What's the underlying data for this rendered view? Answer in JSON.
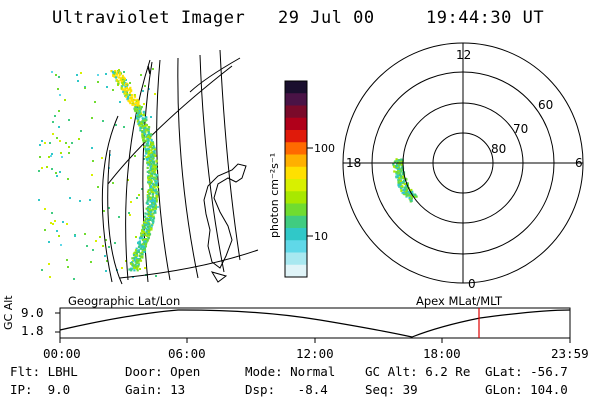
{
  "header": {
    "title": "Ultraviolet Imager",
    "date": "29 Jul 00",
    "time": "19:44:30 UT"
  },
  "colorbar": {
    "label": "photon cm⁻²s⁻¹",
    "ticks": [
      "100",
      "10"
    ],
    "colors": [
      "#1a0f2e",
      "#4a1346",
      "#7a0a2a",
      "#b0001a",
      "#e01a0a",
      "#ff6a00",
      "#ffb000",
      "#ffe000",
      "#d8f000",
      "#a8e800",
      "#70dc30",
      "#40cc80",
      "#30c8c8",
      "#60d8e8",
      "#a8e8f0",
      "#e0f4f8"
    ]
  },
  "polar": {
    "mlt_labels": {
      "top": "12",
      "left": "18",
      "right": "6",
      "bottom": "0"
    },
    "lat_labels": [
      "60",
      "70",
      "80"
    ]
  },
  "timeline": {
    "left_title": "Geographic Lat/Lon",
    "right_title": "Apex MLat/MLT",
    "yaxis_label": "GC Alt",
    "ytick_top": "9.0",
    "ytick_bottom": "1.8",
    "xticks": [
      "00:00",
      "06:00",
      "12:00",
      "18:00",
      "23:59"
    ],
    "marker_color": "#e00000"
  },
  "info": {
    "row1": {
      "flt": "Flt: LBHL",
      "door": "Door: Open",
      "mode": "Mode: Normal",
      "gcalt": "GC Alt: 6.2 Re",
      "glat": "GLat: -56.7"
    },
    "row2": {
      "ip": "IP:  9.0",
      "gain": "Gain: 13",
      "dsp": "Dsp:   -8.4",
      "seq": "Seq: 39",
      "glon": "GLon: 104.0"
    }
  }
}
